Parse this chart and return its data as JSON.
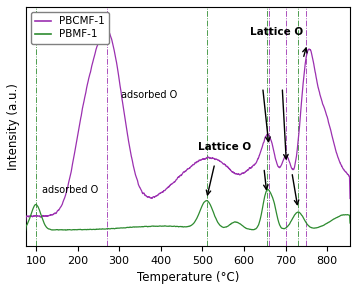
{
  "xlabel": "Temperature (°C)",
  "ylabel": "Intensity (a.u.)",
  "xlim": [
    75,
    855
  ],
  "line1_color": "#9B30B0",
  "line2_color": "#2E8B30",
  "legend_labels": [
    "PBCMF-1",
    "PBMF-1"
  ],
  "purple_vlines": [
    270,
    660,
    700,
    750
  ],
  "green_vlines": [
    100,
    510,
    655,
    730
  ]
}
